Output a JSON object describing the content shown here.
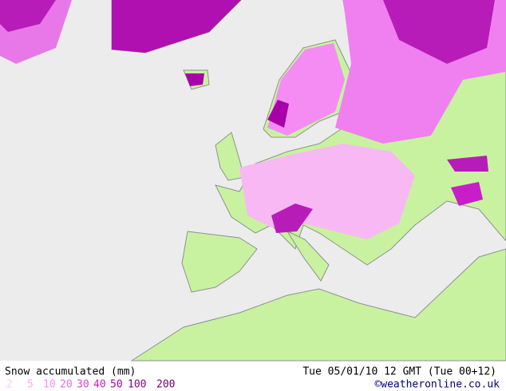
{
  "title": "Snow accumulated (mm)",
  "valid_time": "Tue 05/01/10 12 GMT (Tue 00+12)",
  "credit": "©weatheronline.co.uk",
  "legend": {
    "items": [
      {
        "value": 2,
        "color": "#ffc8f4"
      },
      {
        "value": 5,
        "color": "#ffa8f8"
      },
      {
        "value": 10,
        "color": "#ff8cff"
      },
      {
        "value": 20,
        "color": "#f264f2"
      },
      {
        "value": 30,
        "color": "#e040e0"
      },
      {
        "value": 40,
        "color": "#c81ec8"
      },
      {
        "value": 50,
        "color": "#a800a8"
      },
      {
        "value": 100,
        "color": "#8c008c"
      },
      {
        "value": 200,
        "color": "#6e006e"
      }
    ]
  }
}
